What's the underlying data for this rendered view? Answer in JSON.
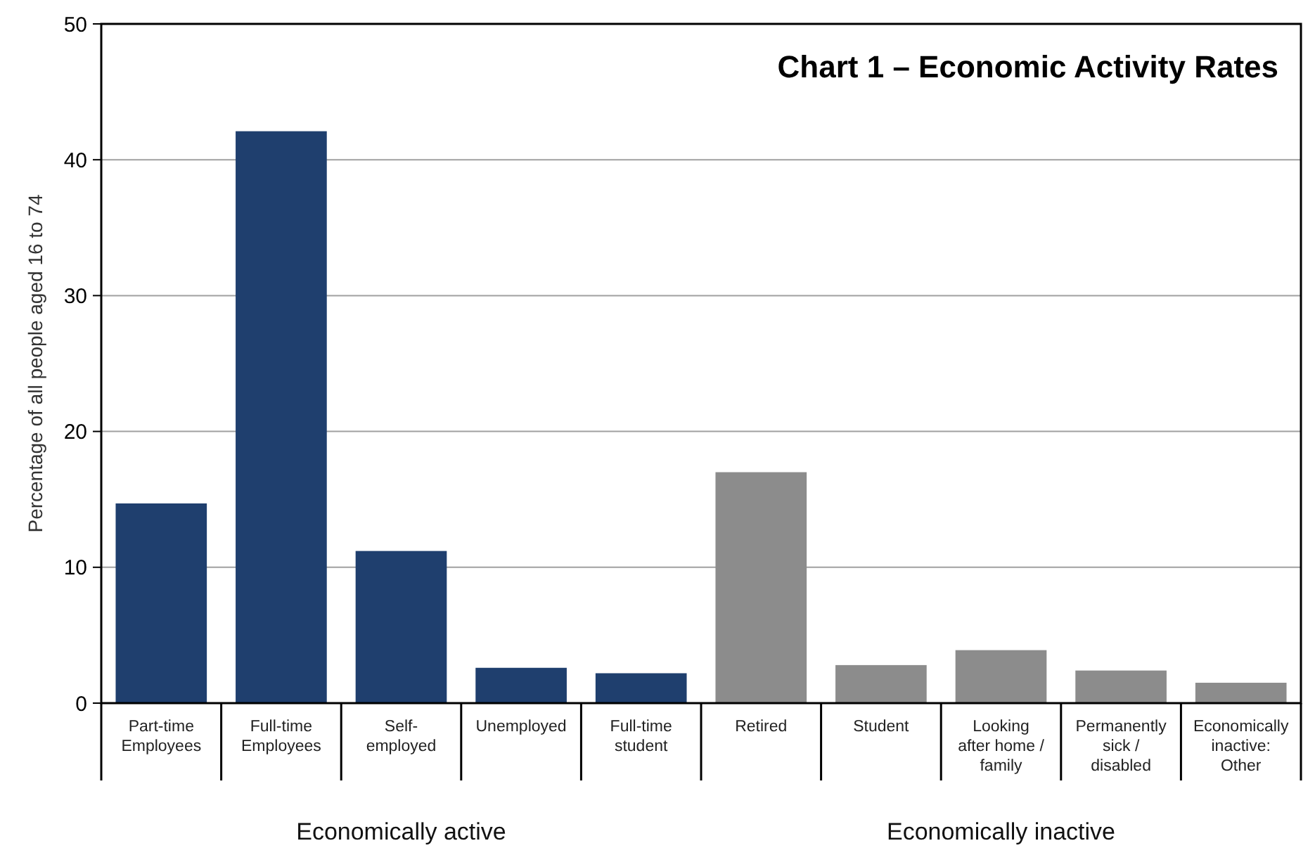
{
  "chart_data": {
    "type": "bar",
    "title": "Chart 1 – Economic Activity Rates",
    "ylabel": "Percentage of all people aged 16 to 74",
    "categories": [
      "Part-time Employees",
      "Full-time Employees",
      "Self-employed",
      "Unemployed",
      "Full-time student",
      "Retired",
      "Student",
      "Looking after home / family",
      "Permanently sick / disabled",
      "Economically inactive: Other"
    ],
    "values": [
      14.7,
      42.1,
      11.2,
      2.6,
      2.2,
      17.0,
      2.8,
      3.9,
      2.4,
      1.5
    ],
    "colors": [
      "#1f3f6e",
      "#1f3f6e",
      "#1f3f6e",
      "#1f3f6e",
      "#1f3f6e",
      "#8c8c8c",
      "#8c8c8c",
      "#8c8c8c",
      "#8c8c8c",
      "#8c8c8c"
    ],
    "ylim": [
      0,
      50
    ],
    "yticks": [
      0,
      10,
      20,
      30,
      40,
      50
    ],
    "grid": "y",
    "annotations": [
      "Economically active",
      "Economically inactive"
    ]
  }
}
